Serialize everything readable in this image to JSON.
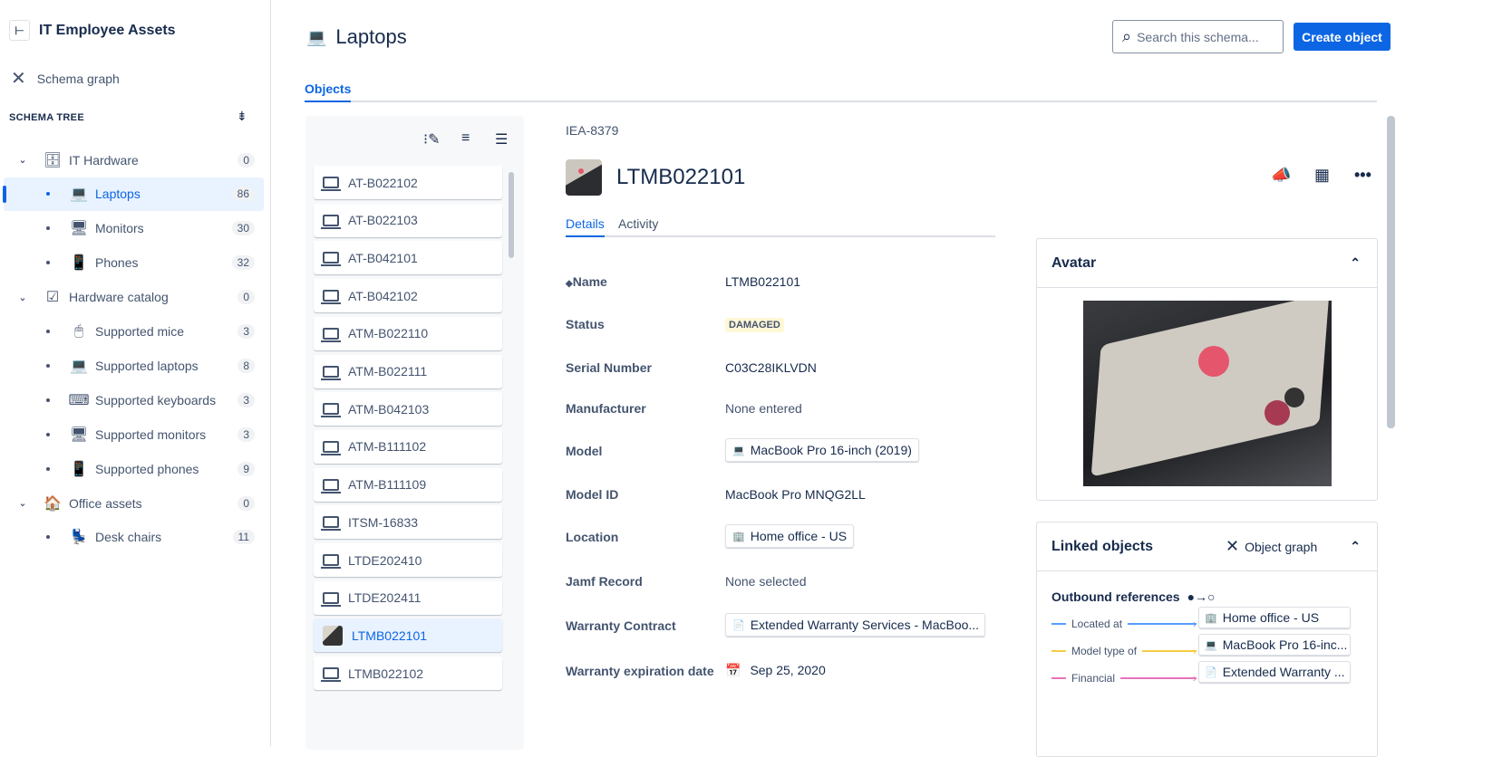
{
  "sidebar": {
    "title": "IT Employee Assets",
    "schema_graph": "Schema graph",
    "tree_heading": "SCHEMA TREE",
    "tree": [
      {
        "label": "IT Hardware",
        "count": "0",
        "icon": "server-icon",
        "parent": true
      },
      {
        "label": "Laptops",
        "count": "86",
        "icon": "laptop-icon",
        "selected": true
      },
      {
        "label": "Monitors",
        "count": "30",
        "icon": "monitor-icon"
      },
      {
        "label": "Phones",
        "count": "32",
        "icon": "phone-icon"
      },
      {
        "label": "Hardware catalog",
        "count": "0",
        "icon": "checklist-icon",
        "parent": true
      },
      {
        "label": "Supported mice",
        "count": "3",
        "icon": "mouse-icon"
      },
      {
        "label": "Supported laptops",
        "count": "8",
        "icon": "laptop-icon"
      },
      {
        "label": "Supported keyboards",
        "count": "3",
        "icon": "keyboard-icon"
      },
      {
        "label": "Supported monitors",
        "count": "3",
        "icon": "monitor-icon"
      },
      {
        "label": "Supported phones",
        "count": "9",
        "icon": "phone-icon"
      },
      {
        "label": "Office assets",
        "count": "0",
        "icon": "house-icon",
        "parent": true
      },
      {
        "label": "Desk chairs",
        "count": "11",
        "icon": "chair-icon"
      }
    ]
  },
  "header": {
    "title": "Laptops",
    "search_placeholder": "Search this schema...",
    "create_label": "Create object",
    "tab": "Objects"
  },
  "list": {
    "items": [
      "AT-B022102",
      "AT-B022103",
      "AT-B042101",
      "AT-B042102",
      "ATM-B022110",
      "ATM-B022111",
      "ATM-B042103",
      "ATM-B111102",
      "ATM-B111109",
      "ITSM-16833",
      "LTDE202410",
      "LTDE202411",
      "LTMB022101",
      "LTMB022102"
    ],
    "selected": "LTMB022101"
  },
  "detail": {
    "key": "IEA-8379",
    "name": "LTMB022101",
    "tabs": [
      "Details",
      "Activity"
    ],
    "attributes": [
      {
        "label": "Name",
        "value": "LTMB022101"
      },
      {
        "label": "Status",
        "value": "DAMAGED",
        "type": "lozenge",
        "color": "#fff7d6"
      },
      {
        "label": "Serial Number",
        "value": "C03C28IKLVDN"
      },
      {
        "label": "Manufacturer",
        "value": "None entered",
        "muted": true
      },
      {
        "label": "Model",
        "value": "MacBook Pro 16-inch (2019)",
        "type": "chip"
      },
      {
        "label": "Model ID",
        "value": "MacBook Pro MNQG2LL"
      },
      {
        "label": "Location",
        "value": "Home office - US",
        "type": "chip"
      },
      {
        "label": "Jamf Record",
        "value": "None selected",
        "muted": true
      },
      {
        "label": "Warranty Contract",
        "value": "Extended Warranty Services - MacBoo...",
        "type": "chip"
      },
      {
        "label": "Warranty expiration date",
        "value": "Sep 25, 2020"
      }
    ]
  },
  "avatar_panel": {
    "title": "Avatar"
  },
  "linked": {
    "title": "Linked objects",
    "graph_label": "Object graph",
    "outbound": "Outbound references",
    "refs": [
      {
        "label": "Located at",
        "target": "Home office - US",
        "color": "#579dff"
      },
      {
        "label": "Model type of",
        "target": "MacBook Pro 16-inc...",
        "color": "#f5cd47"
      },
      {
        "label": "Financial",
        "target": "Extended Warranty ...",
        "color": "#e774bb"
      }
    ]
  }
}
